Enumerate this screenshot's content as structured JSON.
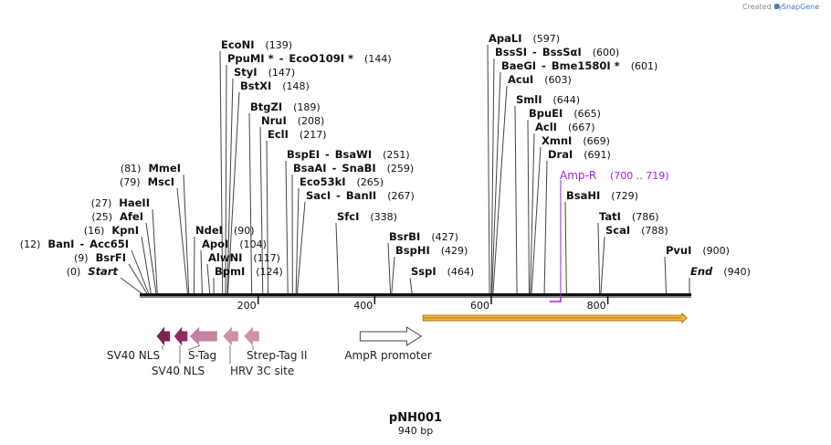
{
  "credit": {
    "text": "Created by",
    "brand": "SnapGene"
  },
  "sequence": {
    "name": "pNH001",
    "length_label": "940 bp",
    "length": 940,
    "ticks": [
      {
        "value": 200,
        "label": "200"
      },
      {
        "value": 400,
        "label": "400"
      },
      {
        "value": 600,
        "label": "600"
      },
      {
        "value": 800,
        "label": "800"
      }
    ]
  },
  "sites": [
    {
      "name": "EcoNI",
      "pos": 139,
      "label": "(139)"
    },
    {
      "name": "PpuMI *",
      "name2": "EcoO109I *",
      "pos": 144,
      "label": "(144)"
    },
    {
      "name": "StyI",
      "pos": 147,
      "label": "(147)"
    },
    {
      "name": "BstXI",
      "pos": 148,
      "label": "(148)"
    },
    {
      "name": "BtgZI",
      "pos": 189,
      "label": "(189)"
    },
    {
      "name": "NruI",
      "pos": 208,
      "label": "(208)"
    },
    {
      "name": "EclI",
      "pos": 217,
      "label": "(217)"
    },
    {
      "name": "BspEI",
      "name2": "BsaWI",
      "pos": 251,
      "label": "(251)"
    },
    {
      "name": "BsaAI",
      "name2": "SnaBI",
      "pos": 259,
      "label": "(259)"
    },
    {
      "name": "Eco53kI",
      "pos": 265,
      "label": "(265)"
    },
    {
      "name": "SacI",
      "name2": "BanII",
      "pos": 267,
      "label": "(267)"
    },
    {
      "name": "SfcI",
      "pos": 338,
      "label": "(338)"
    },
    {
      "name": "BsrBI",
      "pos": 427,
      "label": "(427)"
    },
    {
      "name": "BspHI",
      "pos": 429,
      "label": "(429)"
    },
    {
      "name": "SspI",
      "pos": 464,
      "label": "(464)"
    },
    {
      "name": "MmeI",
      "pos": 81,
      "label": "(81)"
    },
    {
      "name": "MscI",
      "pos": 79,
      "label": "(79)"
    },
    {
      "name": "HaeII",
      "pos": 27,
      "label": "(27)"
    },
    {
      "name": "AfeI",
      "pos": 25,
      "label": "(25)"
    },
    {
      "name": "KpnI",
      "pos": 16,
      "label": "(16)"
    },
    {
      "name": "BanI",
      "name2": "Acc65I",
      "pos": 12,
      "label": "(12)"
    },
    {
      "name": "BsrFI",
      "pos": 9,
      "label": "(9)"
    },
    {
      "name": "Start",
      "pos": 0,
      "label": "(0)",
      "italic": true
    },
    {
      "name": "NdeI",
      "pos": 90,
      "label": "(90)"
    },
    {
      "name": "ApoI",
      "pos": 104,
      "label": "(104)"
    },
    {
      "name": "AlwNI",
      "pos": 117,
      "label": "(117)"
    },
    {
      "name": "BpmI",
      "pos": 124,
      "label": "(124)"
    },
    {
      "name": "ApaLI",
      "pos": 597,
      "label": "(597)"
    },
    {
      "name": "BssSI",
      "name2": "BssSαI",
      "pos": 600,
      "label": "(600)"
    },
    {
      "name": "BaeGI",
      "name2": "Bme1580I *",
      "pos": 601,
      "label": "(601)"
    },
    {
      "name": "AcuI",
      "pos": 603,
      "label": "(603)"
    },
    {
      "name": "SmlI",
      "pos": 644,
      "label": "(644)"
    },
    {
      "name": "BpuEI",
      "pos": 665,
      "label": "(665)"
    },
    {
      "name": "AclI",
      "pos": 667,
      "label": "(667)"
    },
    {
      "name": "XmnI",
      "pos": 669,
      "label": "(669)"
    },
    {
      "name": "DraI",
      "pos": 691,
      "label": "(691)"
    },
    {
      "name": "BsaHI",
      "pos": 729,
      "label": "(729)"
    },
    {
      "name": "TatI",
      "pos": 786,
      "label": "(786)"
    },
    {
      "name": "ScaI",
      "pos": 788,
      "label": "(788)"
    },
    {
      "name": "PvuI",
      "pos": 900,
      "label": "(900)"
    },
    {
      "name": "End",
      "pos": 940,
      "label": "(940)",
      "italic": true
    }
  ],
  "primer": {
    "name": "Amp-R",
    "label": "(700 .. 719)",
    "start": 700,
    "end": 719,
    "color": "#a020f0"
  },
  "orf": {
    "start": 483,
    "end": 940,
    "color": "#f2b640",
    "edge_color": "#b07a10"
  },
  "features": [
    {
      "name": "SV40 NLS",
      "label": "SV40 NLS",
      "start": 27,
      "end": 48,
      "color": "#7e2357"
    },
    {
      "name": "SV40 NLS",
      "label": "SV40 NLS",
      "start": 57,
      "end": 78,
      "color": "#8e2a62"
    },
    {
      "name": "S-Tag",
      "label": "S-Tag",
      "start": 84,
      "end": 129,
      "color": "#c7809f"
    },
    {
      "name": "HRV 3C site",
      "label": "HRV 3C site",
      "start": 141,
      "end": 165,
      "color": "#cf8fa8"
    },
    {
      "name": "Strep-Tag II",
      "label": "Strep-Tag II",
      "start": 177,
      "end": 201,
      "color": "#cf8fa8"
    },
    {
      "name": "AmpR promoter",
      "label": "AmpR promoter",
      "start": 375,
      "end": 480,
      "color": "#ffffff"
    }
  ],
  "colors": {
    "backbone": "#111111",
    "primer": "#a020f0",
    "orf": "#f2b640",
    "credit_brand": "#3f7fbf"
  }
}
